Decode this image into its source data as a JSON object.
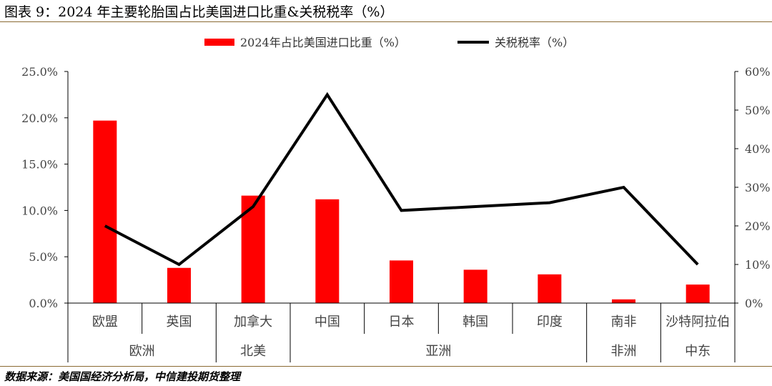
{
  "header": {
    "title": "图表 9：2024 年主要轮胎国占比美国进口比重&关税税率（%）"
  },
  "footer": {
    "source": "数据来源：美国国经济分析局，中信建投期货整理"
  },
  "chart_data": {
    "type": "bar",
    "categories": [
      "欧盟",
      "英国",
      "加拿大",
      "中国",
      "日本",
      "韩国",
      "印度",
      "南非",
      "沙特阿拉伯"
    ],
    "groups": [
      {
        "label": "欧洲",
        "count": 2
      },
      {
        "label": "北美",
        "count": 1
      },
      {
        "label": "亚洲",
        "count": 4
      },
      {
        "label": "非洲",
        "count": 1
      },
      {
        "label": "中东",
        "count": 1
      }
    ],
    "series": [
      {
        "name": "2024年占比美国进口比重（%）",
        "type": "bar",
        "axis": "left",
        "color": "#ff0000",
        "values": [
          19.7,
          3.8,
          11.6,
          11.2,
          4.6,
          3.6,
          3.1,
          0.4,
          2.0
        ]
      },
      {
        "name": "关税税率（%）",
        "type": "line",
        "axis": "right",
        "color": "#000000",
        "values": [
          20,
          10,
          25,
          54,
          24,
          25,
          26,
          30,
          10
        ]
      }
    ],
    "y_left": {
      "min": 0,
      "max": 25,
      "ticks": [
        "0.0%",
        "5.0%",
        "10.0%",
        "15.0%",
        "20.0%",
        "25.0%"
      ]
    },
    "y_right": {
      "min": 0,
      "max": 60,
      "ticks": [
        "0%",
        "10%",
        "20%",
        "30%",
        "40%",
        "50%",
        "60%"
      ]
    },
    "legend": "top-center",
    "grid": false
  }
}
